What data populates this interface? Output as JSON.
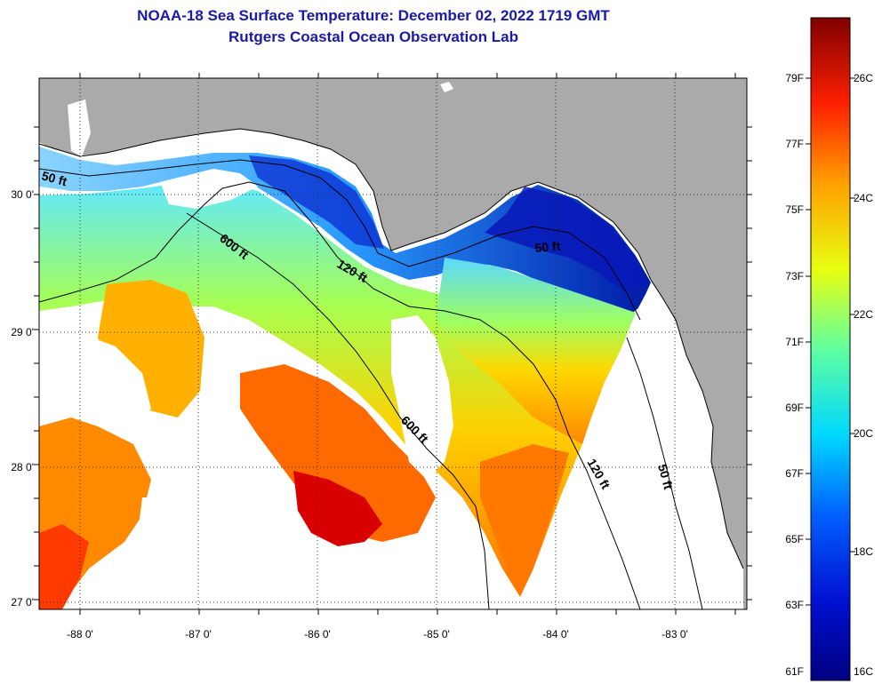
{
  "title": {
    "line1": "NOAA-18 Sea Surface Temperature:  December 02, 2022 1719 GMT",
    "line2": "Rutgers Coastal Ocean Observation Lab"
  },
  "axes": {
    "lon_ticks": [
      "-88 0'",
      "-87 0'",
      "-86 0'",
      "-85 0'",
      "-84 0'",
      "-83 0'"
    ],
    "lat_ticks": [
      "30 0'",
      "29 0'",
      "28 0'",
      "27 0'"
    ]
  },
  "contours": [
    "50 ft",
    "600 ft",
    "120 ft",
    "50 ft",
    "600 ft",
    "120 ft",
    "50 ft"
  ],
  "colorbar": {
    "fahrenheit": [
      "79F",
      "77F",
      "75F",
      "73F",
      "71F",
      "69F",
      "67F",
      "65F",
      "63F",
      "61F"
    ],
    "celsius": [
      "26C",
      "24C",
      "22C",
      "20C",
      "18C",
      "16C"
    ]
  },
  "colors": {
    "land": "#aaaaaa",
    "title": "#1a1aa6",
    "cold": "#00008c",
    "warm": "#c80000"
  }
}
